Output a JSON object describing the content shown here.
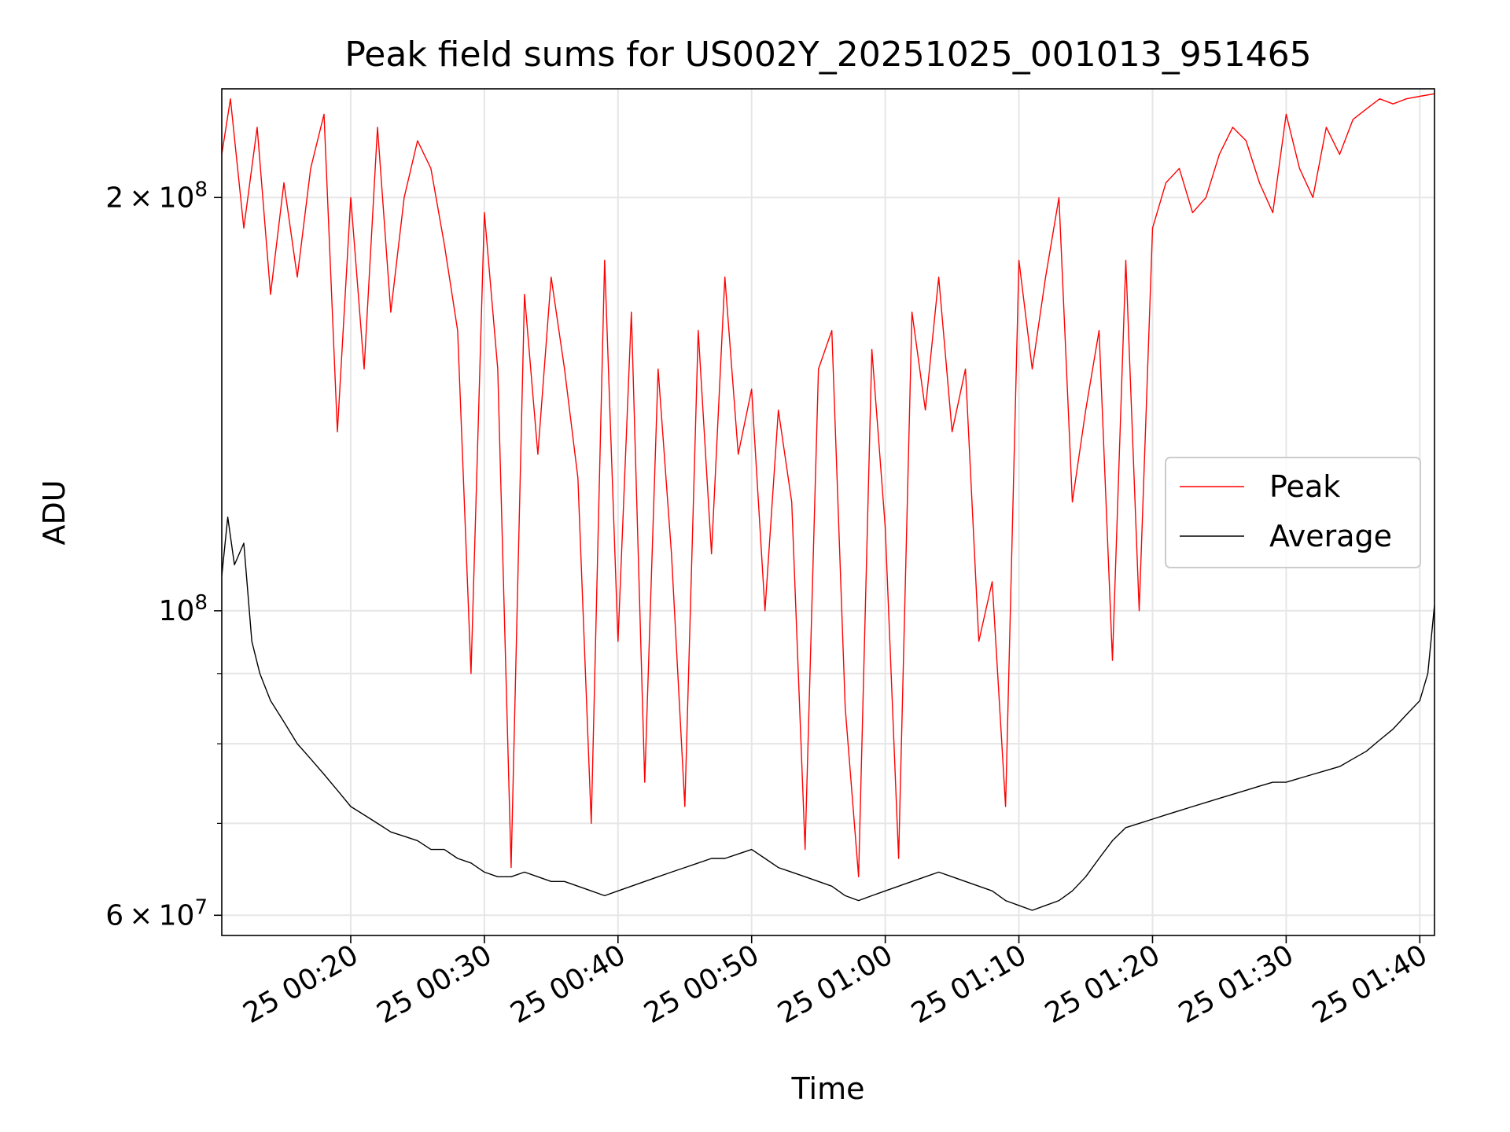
{
  "chart_data": {
    "type": "line",
    "title": "Peak field sums for US002Y_20251025_001013_951465",
    "xlabel": "Time",
    "ylabel": "ADU",
    "yscale": "log",
    "grid": true,
    "legend_position": "center-right",
    "x_range_minutes": [
      10.35,
      101.1
    ],
    "ylim": [
      58000000,
      240000000
    ],
    "x_ticks": [
      {
        "minute": 20,
        "label": "25 00:20"
      },
      {
        "minute": 30,
        "label": "25 00:30"
      },
      {
        "minute": 40,
        "label": "25 00:40"
      },
      {
        "minute": 50,
        "label": "25 00:50"
      },
      {
        "minute": 60,
        "label": "25 01:00"
      },
      {
        "minute": 70,
        "label": "25 01:10"
      },
      {
        "minute": 80,
        "label": "25 01:20"
      },
      {
        "minute": 90,
        "label": "25 01:30"
      },
      {
        "minute": 100,
        "label": "25 01:40"
      }
    ],
    "y_ticks": [
      {
        "value": 60000000,
        "mant": "6",
        "exp": "7"
      },
      {
        "value": 100000000,
        "mant": "",
        "exp": "8"
      },
      {
        "value": 200000000,
        "mant": "2",
        "exp": "8"
      }
    ],
    "y_minor_ticks": [
      70000000,
      80000000,
      90000000
    ],
    "times_sign": "×",
    "base": "10",
    "series": [
      {
        "name": "Peak",
        "color": "#ff0000",
        "minutes": [
          10.35,
          11,
          12,
          13,
          14,
          15,
          16,
          17,
          18,
          19,
          20,
          21,
          22,
          23,
          24,
          25,
          26,
          27,
          28,
          29,
          30,
          31,
          32,
          33,
          34,
          35,
          36,
          37,
          38,
          39,
          40,
          41,
          42,
          43,
          44,
          45,
          46,
          47,
          48,
          49,
          50,
          51,
          52,
          53,
          54,
          55,
          56,
          57,
          58,
          59,
          60,
          61,
          62,
          63,
          64,
          65,
          66,
          67,
          68,
          69,
          70,
          71,
          72,
          73,
          74,
          75,
          76,
          77,
          78,
          79,
          80,
          81,
          82,
          83,
          84,
          85,
          86,
          87,
          88,
          89,
          90,
          91,
          92,
          93,
          94,
          95,
          96,
          97,
          98,
          99,
          100,
          101.1
        ],
        "values": [
          215000000,
          236000000,
          190000000,
          225000000,
          170000000,
          205000000,
          175000000,
          210000000,
          230000000,
          135000000,
          200000000,
          150000000,
          225000000,
          165000000,
          200000000,
          220000000,
          210000000,
          185000000,
          160000000,
          90000000,
          195000000,
          150000000,
          65000000,
          170000000,
          130000000,
          175000000,
          150000000,
          125000000,
          70000000,
          180000000,
          95000000,
          165000000,
          75000000,
          150000000,
          110000000,
          72000000,
          160000000,
          110000000,
          175000000,
          130000000,
          145000000,
          100000000,
          140000000,
          120000000,
          67000000,
          150000000,
          160000000,
          85000000,
          64000000,
          155000000,
          115000000,
          66000000,
          165000000,
          140000000,
          175000000,
          135000000,
          150000000,
          95000000,
          105000000,
          72000000,
          180000000,
          150000000,
          175000000,
          200000000,
          120000000,
          140000000,
          160000000,
          92000000,
          180000000,
          100000000,
          190000000,
          205000000,
          210000000,
          195000000,
          200000000,
          215000000,
          225000000,
          220000000,
          205000000,
          195000000,
          230000000,
          210000000,
          200000000,
          225000000,
          215000000,
          228000000,
          232000000,
          236000000,
          234000000,
          236000000,
          237000000,
          238000000
        ]
      },
      {
        "name": "Average",
        "color": "#000000",
        "minutes": [
          10.35,
          10.8,
          11.3,
          12,
          12.6,
          13.2,
          14,
          15,
          16,
          17,
          18,
          19,
          20,
          21,
          22,
          23,
          24,
          25,
          26,
          27,
          28,
          29,
          30,
          31,
          32,
          33,
          34,
          35,
          36,
          37,
          38,
          39,
          40,
          41,
          42,
          43,
          44,
          45,
          46,
          47,
          48,
          49,
          50,
          51,
          52,
          53,
          54,
          55,
          56,
          57,
          58,
          59,
          60,
          61,
          62,
          63,
          64,
          65,
          66,
          67,
          68,
          69,
          70,
          71,
          72,
          73,
          74,
          75,
          76,
          77,
          78,
          79,
          80,
          81,
          82,
          83,
          84,
          85,
          86,
          87,
          88,
          89,
          90,
          91,
          92,
          93,
          94,
          95,
          96,
          97,
          98,
          99,
          100,
          100.6,
          101.1
        ],
        "values": [
          106000000,
          117000000,
          108000000,
          112000000,
          95000000,
          90000000,
          86000000,
          83000000,
          80000000,
          78000000,
          76000000,
          74000000,
          72000000,
          71000000,
          70000000,
          69000000,
          68500000,
          68000000,
          67000000,
          67000000,
          66000000,
          65500000,
          64500000,
          64000000,
          64000000,
          64500000,
          64000000,
          63500000,
          63500000,
          63000000,
          62500000,
          62000000,
          62500000,
          63000000,
          63500000,
          64000000,
          64500000,
          65000000,
          65500000,
          66000000,
          66000000,
          66500000,
          67000000,
          66000000,
          65000000,
          64500000,
          64000000,
          63500000,
          63000000,
          62000000,
          61500000,
          62000000,
          62500000,
          63000000,
          63500000,
          64000000,
          64500000,
          64000000,
          63500000,
          63000000,
          62500000,
          61500000,
          61000000,
          60500000,
          61000000,
          61500000,
          62500000,
          64000000,
          66000000,
          68000000,
          69500000,
          70000000,
          70500000,
          71000000,
          71500000,
          72000000,
          72500000,
          73000000,
          73500000,
          74000000,
          74500000,
          75000000,
          75000000,
          75500000,
          76000000,
          76500000,
          77000000,
          78000000,
          79000000,
          80500000,
          82000000,
          84000000,
          86000000,
          90000000,
          101000000
        ]
      }
    ]
  }
}
